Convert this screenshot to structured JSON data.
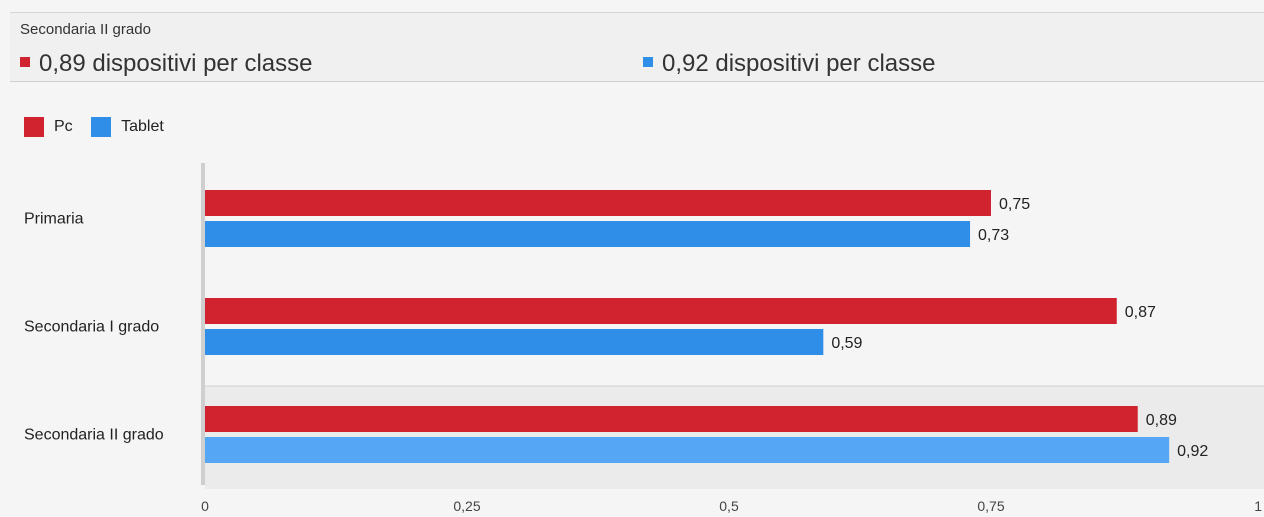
{
  "tooltip": {
    "title": "Secondaria II grado",
    "entries": [
      {
        "label": "0,89 dispositivi per classe",
        "color": "#d0222f"
      },
      {
        "label": "0,92 dispositivi per classe",
        "color": "#2f8ee8"
      }
    ]
  },
  "legend": [
    {
      "label": "Pc",
      "color": "#d0222f"
    },
    {
      "label": "Tablet",
      "color": "#2f8ee8"
    }
  ],
  "chart_data": {
    "type": "bar",
    "orientation": "horizontal",
    "categories": [
      "Primaria",
      "Secondaria I grado",
      "Secondaria II grado"
    ],
    "series": [
      {
        "name": "Pc",
        "color": "#d0222f",
        "values": [
          0.75,
          0.87,
          0.89
        ],
        "labels": [
          "0,75",
          "0,87",
          "0,89"
        ]
      },
      {
        "name": "Tablet",
        "color": "#2f8ee8",
        "values": [
          0.73,
          0.59,
          0.92
        ],
        "labels": [
          "0,73",
          "0,59",
          "0,92"
        ]
      }
    ],
    "xlim": [
      0,
      1
    ],
    "x_ticks": [
      0,
      0.25,
      0.5,
      0.75,
      1
    ],
    "x_tick_labels": [
      "0",
      "0,25",
      "0,5",
      "0,75",
      "1"
    ],
    "highlighted_category": "Secondaria II grado",
    "highlight_colors": {
      "Pc": "#d0222f",
      "Tablet": "#55a7f5"
    },
    "legend_position": "top-left",
    "grid": false
  }
}
